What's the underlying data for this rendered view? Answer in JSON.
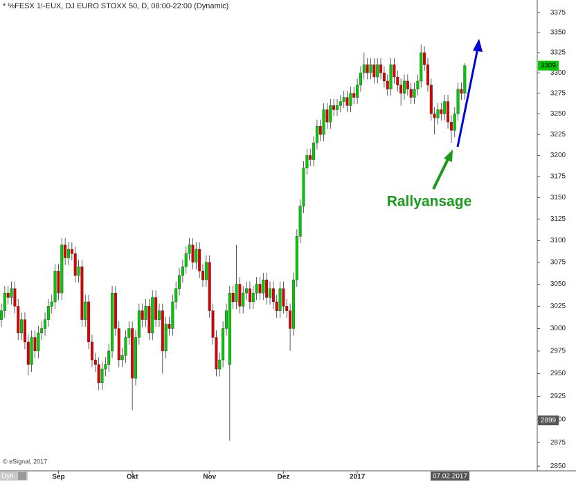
{
  "chart_data": {
    "type": "candlestick",
    "title": "* %FESX 1!-EUX, DJ EURO STOXX 50, D, 08:00-22:00 (Dynamic)",
    "annotation": "Rallyansage",
    "credit": "© eSignal, 2017",
    "corner_label": "Dyn",
    "date_marker": "07.02.2017",
    "last_price": 3309,
    "marker_price": 2899,
    "log_scale": true,
    "up_color": "#00cc00",
    "down_color": "#dd0000",
    "ylim": [
      2845,
      3390
    ],
    "yticks": [
      2850,
      2875,
      2900,
      2925,
      2950,
      2975,
      3000,
      3025,
      3050,
      3075,
      3100,
      3125,
      3150,
      3175,
      3200,
      3225,
      3250,
      3275,
      3300,
      3325,
      3350,
      3375
    ],
    "categories": [
      null,
      null,
      null,
      null,
      null,
      null,
      null,
      null,
      null,
      null,
      null,
      null,
      null,
      null,
      null,
      null,
      null,
      "Sep",
      null,
      null,
      null,
      null,
      null,
      null,
      null,
      null,
      null,
      null,
      null,
      null,
      null,
      null,
      null,
      null,
      null,
      null,
      null,
      null,
      null,
      "Okt",
      null,
      null,
      null,
      null,
      null,
      null,
      null,
      null,
      null,
      null,
      null,
      null,
      null,
      null,
      null,
      null,
      null,
      null,
      null,
      null,
      null,
      null,
      "Nov",
      null,
      null,
      null,
      null,
      null,
      null,
      null,
      null,
      null,
      null,
      null,
      null,
      null,
      null,
      null,
      null,
      null,
      null,
      null,
      null,
      null,
      "Dez",
      null,
      null,
      null,
      null,
      null,
      null,
      null,
      null,
      null,
      null,
      null,
      null,
      null,
      null,
      null,
      null,
      null,
      null,
      null,
      null,
      null,
      "2017",
      null,
      null,
      null,
      null,
      null,
      null,
      null,
      null,
      null,
      null,
      null,
      null,
      null,
      null,
      null,
      null,
      null,
      null,
      null,
      null,
      null,
      null,
      null,
      null,
      null,
      null,
      null,
      null,
      null,
      null,
      null,
      null
    ],
    "open": [
      3010,
      3020,
      3040,
      3035,
      3045,
      3025,
      2995,
      3010,
      2985,
      2960,
      2990,
      2975,
      2995,
      3000,
      3010,
      3025,
      3030,
      3065,
      3040,
      3095,
      3080,
      3090,
      3085,
      3060,
      3070,
      3010,
      3030,
      2985,
      2965,
      2960,
      2940,
      2955,
      2960,
      2975,
      3040,
      3000,
      2965,
      2970,
      2990,
      3000,
      2945,
      2990,
      3020,
      3010,
      3025,
      2995,
      3035,
      3010,
      3020,
      2975,
      3005,
      3000,
      3030,
      3045,
      3060,
      3070,
      3085,
      3095,
      3075,
      3090,
      3065,
      3055,
      3075,
      3020,
      2990,
      2955,
      2965,
      3000,
      2960,
      3040,
      3030,
      3050,
      3025,
      3040,
      3045,
      3030,
      3040,
      3050,
      3040,
      3055,
      3035,
      3045,
      3030,
      3020,
      3045,
      3025,
      3020,
      3000,
      3055,
      3105,
      3140,
      3185,
      3200,
      3195,
      3215,
      3235,
      3225,
      3255,
      3240,
      3260,
      3255,
      3260,
      3265,
      3270,
      3260,
      3275,
      3270,
      3285,
      3300,
      3310,
      3300,
      3310,
      3295,
      3310,
      3300,
      3290,
      3280,
      3310,
      3295,
      3285,
      3275,
      3290,
      3280,
      3270,
      3280,
      3290,
      3325,
      3310,
      3285,
      3250,
      3245,
      3255,
      3250,
      3265,
      3240,
      3230,
      3250,
      3280,
      3275
    ],
    "high": [
      3028,
      3048,
      3048,
      3053,
      3053,
      3033,
      3018,
      3018,
      2993,
      2998,
      2998,
      3003,
      3008,
      3018,
      3033,
      3038,
      3073,
      3073,
      3103,
      3103,
      3098,
      3098,
      3093,
      3078,
      3078,
      3038,
      3038,
      2993,
      2973,
      2968,
      2963,
      2968,
      2983,
      3048,
      3048,
      3008,
      2978,
      2998,
      3008,
      3008,
      2998,
      3028,
      3028,
      3033,
      3033,
      3043,
      3043,
      3028,
      3028,
      3013,
      3013,
      3038,
      3053,
      3068,
      3078,
      3093,
      3103,
      3103,
      3098,
      3098,
      3073,
      3083,
      3083,
      3028,
      2998,
      2973,
      3008,
      3028,
      3048,
      3048,
      3095,
      3058,
      3048,
      3053,
      3053,
      3048,
      3058,
      3058,
      3063,
      3063,
      3053,
      3053,
      3038,
      3053,
      3053,
      3033,
      3028,
      3063,
      3113,
      3148,
      3193,
      3208,
      3208,
      3223,
      3243,
      3243,
      3263,
      3263,
      3268,
      3268,
      3268,
      3273,
      3278,
      3278,
      3283,
      3283,
      3293,
      3308,
      3325,
      3318,
      3318,
      3318,
      3318,
      3318,
      3308,
      3298,
      3318,
      3318,
      3303,
      3293,
      3298,
      3298,
      3288,
      3288,
      3298,
      3335,
      3333,
      3318,
      3293,
      3258,
      3263,
      3263,
      3273,
      3273,
      3248,
      3258,
      3288,
      3288,
      3312
    ],
    "low": [
      3002,
      3012,
      3027,
      3027,
      3017,
      2987,
      2987,
      2977,
      2948,
      2952,
      2967,
      2967,
      2987,
      2992,
      3002,
      3017,
      3022,
      3032,
      3032,
      3072,
      3072,
      3077,
      3052,
      3052,
      3002,
      3002,
      2977,
      2957,
      2952,
      2932,
      2932,
      2947,
      2952,
      2967,
      2992,
      2957,
      2957,
      2962,
      2982,
      2910,
      2937,
      2982,
      3002,
      3002,
      2987,
      2987,
      3002,
      3002,
      2950,
      2967,
      2992,
      2992,
      3022,
      3037,
      3052,
      3062,
      3077,
      3067,
      3067,
      3057,
      3047,
      3047,
      3012,
      2982,
      2947,
      2947,
      2957,
      2992,
      2877,
      3022,
      3022,
      3017,
      3017,
      3032,
      3022,
      3022,
      3032,
      3032,
      3032,
      3027,
      3027,
      3022,
      3012,
      3012,
      3017,
      3012,
      2975,
      2992,
      3047,
      3097,
      3132,
      3177,
      3187,
      3187,
      3207,
      3217,
      3217,
      3232,
      3232,
      3247,
      3247,
      3252,
      3257,
      3252,
      3252,
      3262,
      3262,
      3277,
      3292,
      3292,
      3292,
      3287,
      3287,
      3292,
      3282,
      3272,
      3272,
      3287,
      3277,
      3260,
      3267,
      3272,
      3262,
      3262,
      3272,
      3282,
      3302,
      3277,
      3242,
      3225,
      3237,
      3242,
      3242,
      3232,
      3215,
      3222,
      3242,
      3267,
      3267
    ],
    "close": [
      3020,
      3040,
      3035,
      3045,
      3025,
      2995,
      3010,
      2985,
      2960,
      2990,
      2975,
      2995,
      3000,
      3010,
      3025,
      3030,
      3065,
      3040,
      3095,
      3080,
      3090,
      3085,
      3060,
      3070,
      3010,
      3030,
      2985,
      2965,
      2960,
      2940,
      2955,
      2960,
      2975,
      3040,
      3000,
      2965,
      2970,
      2990,
      3000,
      2945,
      2990,
      3020,
      3010,
      3025,
      2995,
      3035,
      3010,
      3020,
      2975,
      3005,
      3000,
      3030,
      3045,
      3060,
      3070,
      3085,
      3095,
      3075,
      3090,
      3065,
      3055,
      3075,
      3020,
      2990,
      2955,
      2965,
      3000,
      3020,
      3040,
      3030,
      3050,
      3025,
      3040,
      3045,
      3030,
      3040,
      3050,
      3040,
      3055,
      3035,
      3045,
      3030,
      3020,
      3045,
      3025,
      3020,
      3000,
      3055,
      3105,
      3140,
      3185,
      3200,
      3195,
      3215,
      3235,
      3225,
      3255,
      3240,
      3260,
      3255,
      3260,
      3265,
      3270,
      3260,
      3275,
      3270,
      3285,
      3300,
      3310,
      3300,
      3310,
      3295,
      3310,
      3300,
      3290,
      3280,
      3310,
      3295,
      3285,
      3275,
      3290,
      3280,
      3270,
      3280,
      3290,
      3325,
      3310,
      3285,
      3250,
      3245,
      3255,
      3250,
      3265,
      3240,
      3230,
      3250,
      3280,
      3275,
      3309
    ]
  }
}
